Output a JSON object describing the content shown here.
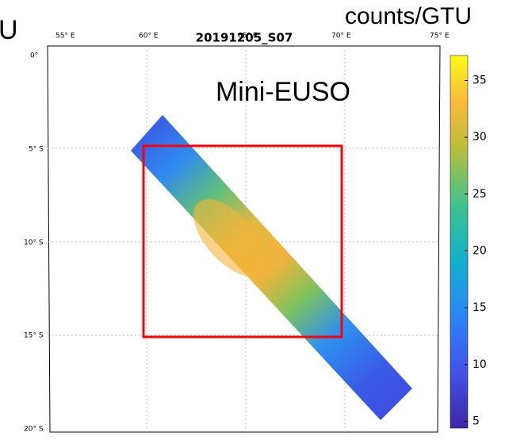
{
  "header": {
    "left_fragment": "U",
    "unit": "counts/GTU",
    "title": "20191205_S07",
    "label": "Mini-EUSO"
  },
  "map": {
    "lon_labels": [
      "55° E",
      "60° E",
      "65° E",
      "70° E",
      "75° E"
    ],
    "lat_labels": [
      "0°",
      "5° S",
      "10° S",
      "15° S",
      "20° S"
    ]
  },
  "colorbar": {
    "lim": [
      4.4,
      37.2
    ],
    "ticks": [
      5,
      10,
      15,
      20,
      25,
      30,
      35
    ]
  }
}
